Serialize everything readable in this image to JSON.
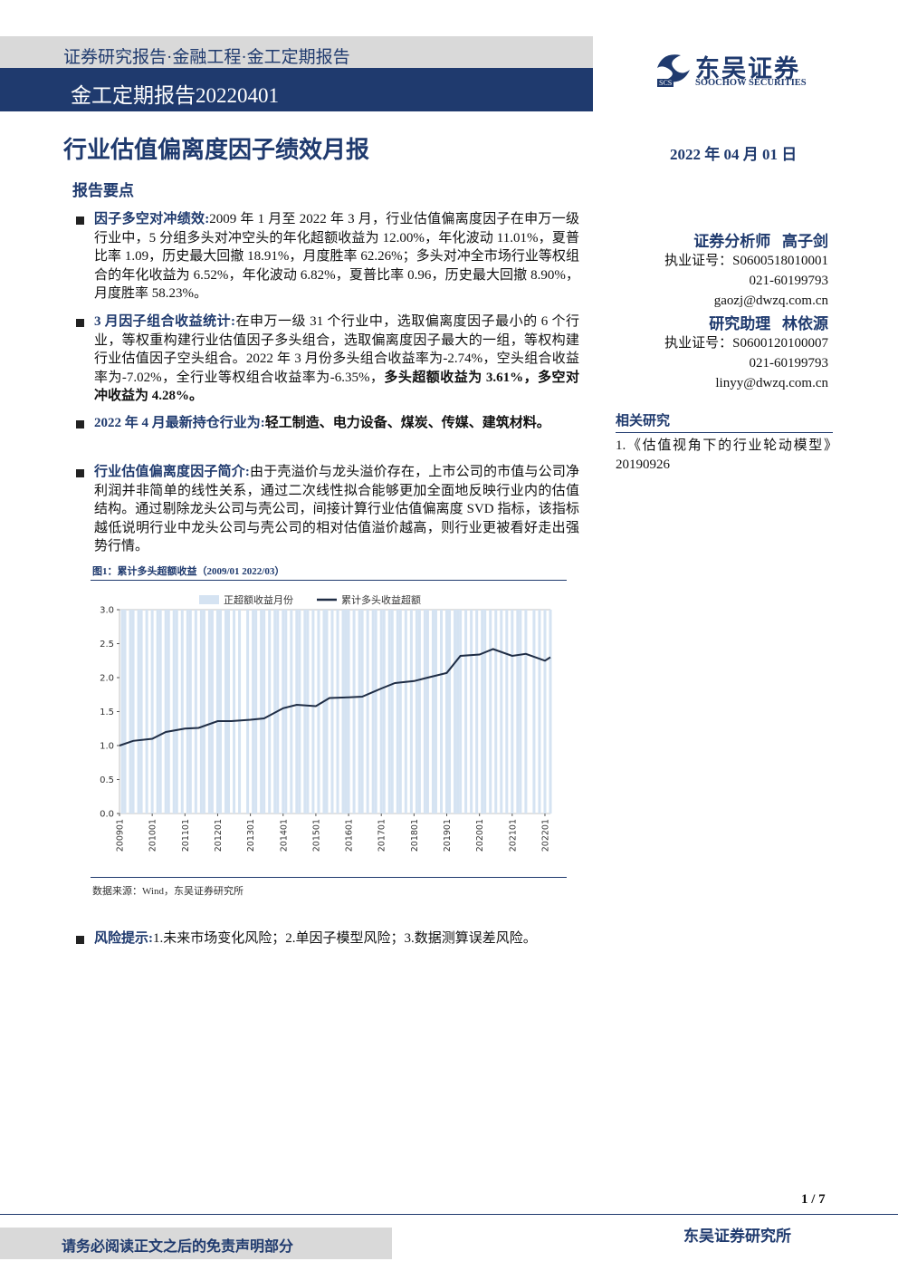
{
  "header": {
    "series": "证券研究报告·金融工程·金工定期报告",
    "report": "金工定期报告20220401"
  },
  "logo": {
    "mark": "SCS",
    "name": "东吴证券",
    "name_en": "SOOCHOW SECURITIES"
  },
  "title": "行业估值偏离度因子绩效月报",
  "date": "2022 年 04 月 01 日",
  "summary_heading": "报告要点",
  "bullets": [
    {
      "label": "因子多空对冲绩效:",
      "text": "2009 年 1 月至 2022 年 3 月，行业估值偏离度因子在申万一级行业中，5 分组多头对冲空头的年化超额收益为 12.00%，年化波动 11.01%，夏普比率 1.09，历史最大回撤 18.91%，月度胜率 62.26%；多头对冲全市场行业等权组合的年化收益为 6.52%，年化波动 6.82%，夏普比率 0.96，历史最大回撤 8.90%，月度胜率 58.23%。"
    },
    {
      "label": "3 月因子组合收益统计:",
      "text": "在申万一级 31 个行业中，选取偏离度因子最小的 6 个行业，等权重构建行业估值因子多头组合，选取偏离度因子最大的一组，等权构建行业估值因子空头组合。2022 年 3 月份多头组合收益率为-2.74%，空头组合收益率为-7.02%，全行业等权组合收益率为-6.35%，",
      "text_bold": "多头超额收益为 3.61%，多空对冲收益为 4.28%。"
    },
    {
      "label": "2022 年 4 月最新持仓行业为:",
      "text_bold": "轻工制造、电力设备、煤炭、传媒、建筑材料。"
    },
    {
      "label": "行业估值偏离度因子简介:",
      "text": "由于壳溢价与龙头溢价存在，上市公司的市值与公司净利润并非简单的线性关系，通过二次线性拟合能够更加全面地反映行业内的估值结构。通过剔除龙头公司与壳公司，间接计算行业估值偏离度 SVD 指标，该指标越低说明行业中龙头公司与壳公司的相对估值溢价越高，则行业更被看好走出强势行情。"
    }
  ],
  "figure": {
    "title": "图1：累计多头超额收益（2009/01 2022/03）",
    "source": "数据来源：Wind，东吴证券研究所",
    "chart_data": {
      "type": "line",
      "series": [
        {
          "name": "正超额收益月份",
          "type": "band",
          "color": "#d5e3f2",
          "x": [
            "200902",
            "200903",
            "200905",
            "200906",
            "200908",
            "200909",
            "200911",
            "201001",
            "201003",
            "201004",
            "201006",
            "201007",
            "201009",
            "201010",
            "201012",
            "201102",
            "201103",
            "201105",
            "201107",
            "201108",
            "201110",
            "201111",
            "201201",
            "201202",
            "201204",
            "201205",
            "201207",
            "201209",
            "201212",
            "201302",
            "201303",
            "201305",
            "201306",
            "201308",
            "201310",
            "201311",
            "201401",
            "201402",
            "201404",
            "201406",
            "201407",
            "201409",
            "201410",
            "201412",
            "201502",
            "201504",
            "201505",
            "201507",
            "201509",
            "201511",
            "201512",
            "201601",
            "201603",
            "201605",
            "201606",
            "201608",
            "201610",
            "201611",
            "201701",
            "201702",
            "201704",
            "201705",
            "201707",
            "201708",
            "201710",
            "201712",
            "201802",
            "201803",
            "201805",
            "201806",
            "201808",
            "201809",
            "201811",
            "201901",
            "201902",
            "201904",
            "201905",
            "201906",
            "201908",
            "201910",
            "201912",
            "202002",
            "202003",
            "202005",
            "202007",
            "202009",
            "202011",
            "202101",
            "202103",
            "202104",
            "202106",
            "202109",
            "202111",
            "202201",
            "202203"
          ]
        },
        {
          "name": "累计多头收益超额",
          "color": "#1f2d45",
          "x": [
            "200901",
            "200906",
            "201001",
            "201006",
            "201101",
            "201106",
            "201201",
            "201206",
            "201301",
            "201306",
            "201401",
            "201406",
            "201501",
            "201506",
            "201601",
            "201606",
            "201701",
            "201706",
            "201801",
            "201806",
            "201901",
            "201906",
            "202001",
            "202006",
            "202101",
            "202106",
            "202201",
            "202203"
          ],
          "values": [
            1.0,
            1.07,
            1.1,
            1.2,
            1.25,
            1.26,
            1.36,
            1.36,
            1.38,
            1.4,
            1.55,
            1.6,
            1.58,
            1.7,
            1.71,
            1.72,
            1.84,
            1.92,
            1.95,
            2.0,
            2.07,
            2.32,
            2.34,
            2.42,
            2.32,
            2.35,
            2.25,
            2.3
          ]
        }
      ],
      "xlim": [
        "200901",
        "202203"
      ],
      "xticks": [
        "200901",
        "201001",
        "201101",
        "201201",
        "201301",
        "201401",
        "201501",
        "201601",
        "201701",
        "201801",
        "201901",
        "202001",
        "202101",
        "202201"
      ],
      "ylim": [
        0,
        3
      ],
      "yticks": [
        {
          "value": 0,
          "label": "0.0"
        },
        {
          "value": 0.5,
          "label": "0.5"
        },
        {
          "value": 1,
          "label": "1.0"
        },
        {
          "value": 1.5,
          "label": "1.5"
        },
        {
          "value": 2,
          "label": "2.0"
        },
        {
          "value": 2.5,
          "label": "2.5"
        },
        {
          "value": 3,
          "label": "3.0"
        }
      ]
    }
  },
  "risk": {
    "label": "风险提示:",
    "text": "1.未来市场变化风险；2.单因子模型风险；3.数据测算误差风险。"
  },
  "analysts": [
    {
      "role": "证券分析师",
      "name": "高子剑",
      "license": "执业证号：S0600518010001",
      "phone": "021-60199793",
      "email": "gaozj@dwzq.com.cn"
    },
    {
      "role": "研究助理",
      "name": "林依源",
      "license": "执业证号：S0600120100007",
      "phone": "021-60199793",
      "email": "linyy@dwzq.com.cn"
    }
  ],
  "related": {
    "heading": "相关研究",
    "items": [
      "1.《估值视角下的行业轮动模型》20190926"
    ]
  },
  "footer": {
    "page": "1 / 7",
    "institute": "东吴证券研究所",
    "disclaimer": "请务必阅读正文之后的免责声明部分"
  }
}
